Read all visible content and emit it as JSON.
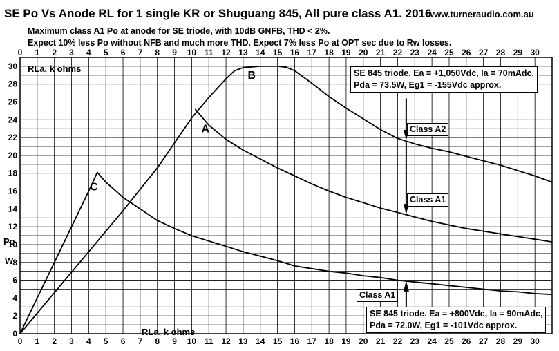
{
  "header": {
    "title": "SE Po Vs  Anode RL  for  1 single  KR or Shuguang 845, All pure class A1.  2016",
    "website": "www.turneraudio.com.au",
    "subtitle_lines": [
      "Maximum class A1 Po at anode for SE triode, with 10dB GNFB, THD < 2%.",
      "Expect 10% less Po without NFB and much more THD.  Expect 7% less Po at OPT sec due to Rw losses."
    ]
  },
  "notes": {
    "upper_box": [
      "SE 845  triode. Ea = +1,050Vdc, Ia = 70mAdc,",
      "Pda = 73.5W, Eg1 = -155Vdc approx."
    ],
    "lower_box": [
      "SE 845 triode. Ea = +800Vdc, Ia = 90mAdc,",
      "Pda = 72.0W, Eg1 = -101Vdc approx."
    ],
    "class_a2_label": "Class A2",
    "class_a1_label_upper": "Class A1",
    "class_a1_label_lower": "Class A1"
  },
  "chart_data": {
    "type": "line",
    "xlabel": "RLa, k ohms",
    "xlabel_top": "RLa, k ohms",
    "ylabel": [
      "Po",
      "W"
    ],
    "xlim": [
      0,
      31
    ],
    "ylim": [
      0,
      31
    ],
    "x_ticks": [
      0,
      1,
      2,
      3,
      4,
      5,
      6,
      7,
      8,
      9,
      10,
      11,
      12,
      13,
      14,
      15,
      16,
      17,
      18,
      19,
      20,
      21,
      22,
      23,
      24,
      25,
      26,
      27,
      28,
      29,
      30
    ],
    "y_ticks": [
      0,
      2,
      4,
      6,
      8,
      10,
      12,
      14,
      16,
      18,
      20,
      22,
      24,
      26,
      28,
      30
    ],
    "grid": true,
    "marker_x": 22.5,
    "series": [
      {
        "name": "B",
        "points": [
          [
            0,
            0
          ],
          [
            2,
            4.6
          ],
          [
            4,
            9.2
          ],
          [
            6,
            13.8
          ],
          [
            8,
            18.6
          ],
          [
            10,
            24.2
          ],
          [
            11,
            26.5
          ],
          [
            12,
            28.6
          ],
          [
            12.5,
            29.5
          ],
          [
            13,
            29.85
          ],
          [
            14,
            30
          ],
          [
            15,
            30
          ],
          [
            15.5,
            29.9
          ],
          [
            16,
            29.5
          ],
          [
            17,
            28.1
          ],
          [
            18,
            26.6
          ],
          [
            19,
            25.3
          ],
          [
            20,
            24.1
          ],
          [
            21,
            22.9
          ],
          [
            22,
            21.9
          ],
          [
            23,
            21.3
          ],
          [
            24,
            20.8
          ],
          [
            25,
            20.4
          ],
          [
            26,
            19.9
          ],
          [
            27,
            19.4
          ],
          [
            28,
            18.9
          ],
          [
            29,
            18.3
          ],
          [
            30,
            17.7
          ],
          [
            31,
            17
          ]
        ]
      },
      {
        "name": "A",
        "points": [
          [
            10.2,
            25.2
          ],
          [
            11,
            23.4
          ],
          [
            12,
            21.8
          ],
          [
            13,
            20.6
          ],
          [
            14,
            19.6
          ],
          [
            15,
            18.6
          ],
          [
            16,
            17.7
          ],
          [
            17,
            16.8
          ],
          [
            18,
            16
          ],
          [
            19,
            15.3
          ],
          [
            20,
            14.7
          ],
          [
            21,
            14.1
          ],
          [
            22,
            13.6
          ],
          [
            23,
            13.1
          ],
          [
            24,
            12.6
          ],
          [
            25,
            12.2
          ],
          [
            26,
            11.8
          ],
          [
            27,
            11.5
          ],
          [
            28,
            11.2
          ],
          [
            29,
            10.9
          ],
          [
            30,
            10.6
          ],
          [
            31,
            10.3
          ]
        ]
      },
      {
        "name": "C",
        "points": [
          [
            0,
            0
          ],
          [
            1,
            4
          ],
          [
            2,
            8
          ],
          [
            3,
            12
          ],
          [
            4,
            16
          ],
          [
            4.5,
            18.1
          ],
          [
            5,
            17
          ],
          [
            6,
            15.3
          ],
          [
            7,
            14
          ],
          [
            8,
            12.7
          ],
          [
            9,
            11.8
          ],
          [
            10,
            11
          ],
          [
            11,
            10.4
          ],
          [
            12,
            9.8
          ],
          [
            13,
            9.2
          ],
          [
            14,
            8.7
          ],
          [
            15,
            8.2
          ],
          [
            16,
            7.6
          ],
          [
            17,
            7.3
          ],
          [
            18,
            7
          ],
          [
            19,
            6.8
          ],
          [
            20,
            6.5
          ],
          [
            21,
            6.3
          ],
          [
            22,
            6
          ],
          [
            23,
            5.8
          ],
          [
            24,
            5.6
          ],
          [
            25,
            5.4
          ],
          [
            26,
            5.2
          ],
          [
            27,
            5
          ],
          [
            28,
            4.8
          ],
          [
            29,
            4.7
          ],
          [
            30,
            4.5
          ],
          [
            31,
            4.4
          ]
        ]
      }
    ],
    "curve_labels": [
      {
        "text": "B",
        "x": 13.5,
        "y": 28.6
      },
      {
        "text": "A",
        "x": 10.8,
        "y": 22.6
      },
      {
        "text": "C",
        "x": 4.3,
        "y": 16.1
      }
    ]
  }
}
